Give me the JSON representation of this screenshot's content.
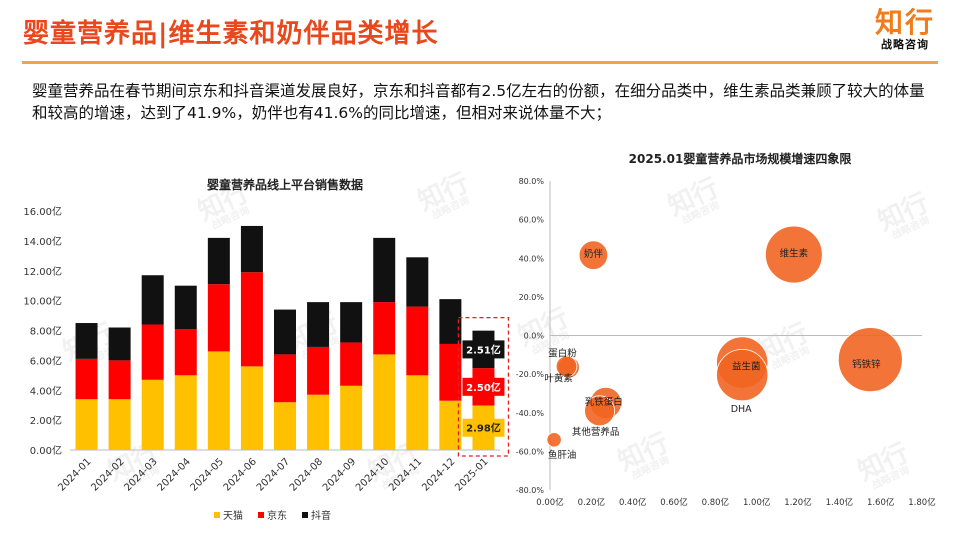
{
  "header": {
    "title": "婴童营养品|维生素和奶伴品类增长",
    "intro": "婴童营养品在春节期间京东和抖音渠道发展良好，京东和抖音都有2.5亿左右的份额，在细分品类中，维生素品类兼顾了较大的体量和较高的增速，达到了41.9%，奶伴也有41.6%的同比增速，但相对来说体量不大；"
  },
  "logo": {
    "main": "知行",
    "sub": "战略咨询"
  },
  "watermark": {
    "main": "知行",
    "sub": "战略咨询"
  },
  "colors": {
    "accent": "#e8481c",
    "tmall": "#ffc000",
    "jd": "#ff0000",
    "douyin": "#111111",
    "bubble": "#f26522",
    "highlight": "#e02020"
  },
  "chart_data": [
    {
      "type": "bar",
      "stacked": true,
      "title": "婴童营养品线上平台销售数据",
      "categories": [
        "2024-01",
        "2024-02",
        "2024-03",
        "2024-04",
        "2024-05",
        "2024-06",
        "2024-07",
        "2024-08",
        "2024-09",
        "2024-10",
        "2024-11",
        "2024-12",
        "2025-01"
      ],
      "series": [
        {
          "name": "天猫",
          "values": [
            3.4,
            3.4,
            4.7,
            5.0,
            6.6,
            5.6,
            3.2,
            3.7,
            4.3,
            6.4,
            5.0,
            3.3,
            2.98
          ]
        },
        {
          "name": "京东",
          "values": [
            2.7,
            2.6,
            3.7,
            3.1,
            4.5,
            6.3,
            3.2,
            3.2,
            2.9,
            3.5,
            4.6,
            3.8,
            2.5
          ]
        },
        {
          "name": "抖音",
          "values": [
            2.4,
            2.2,
            3.3,
            2.9,
            3.1,
            3.1,
            3.0,
            3.0,
            2.7,
            4.3,
            3.3,
            3.0,
            2.51
          ]
        }
      ],
      "highlight_index": 12,
      "highlight_labels": [
        "2.98亿",
        "2.50亿",
        "2.51亿"
      ],
      "ylim": [
        0,
        16
      ],
      "yticks": [
        "0.00亿",
        "2.00亿",
        "4.00亿",
        "6.00亿",
        "8.00亿",
        "10.00亿",
        "12.00亿",
        "14.00亿",
        "16.00亿"
      ],
      "legend": [
        "天猫",
        "京东",
        "抖音"
      ]
    },
    {
      "type": "scatter",
      "bubble": true,
      "title": "2025.01婴童营养品市场规模增速四象限",
      "xlim": [
        0,
        1.8
      ],
      "ylim": [
        -80,
        80
      ],
      "xticks": [
        "0.00亿",
        "0.20亿",
        "0.40亿",
        "0.60亿",
        "0.80亿",
        "1.00亿",
        "1.20亿",
        "1.40亿",
        "1.60亿",
        "1.80亿"
      ],
      "yticks": [
        "-80.0%",
        "-60.0%",
        "-40.0%",
        "-20.0%",
        "0.0%",
        "20.0%",
        "40.0%",
        "60.0%",
        "80.0%"
      ],
      "points": [
        {
          "label": "奶伴",
          "x": 0.21,
          "y": 41.6,
          "size": 0.21
        },
        {
          "label": "维生素",
          "x": 1.18,
          "y": 41.9,
          "size": 1.18
        },
        {
          "label": "蛋白粉",
          "x": 0.08,
          "y": -16,
          "size": 0.08
        },
        {
          "label": "叶黄素",
          "x": 0.09,
          "y": -16.5,
          "size": 0.09
        },
        {
          "label": "益生菌",
          "x": 0.93,
          "y": -14,
          "size": 0.93
        },
        {
          "label": "DHA",
          "x": 0.93,
          "y": -20.5,
          "size": 0.93
        },
        {
          "label": "钙铁锌",
          "x": 1.55,
          "y": -12.5,
          "size": 1.55
        },
        {
          "label": "乳铁蛋白",
          "x": 0.27,
          "y": -35,
          "size": 0.27
        },
        {
          "label": "其他营养品",
          "x": 0.24,
          "y": -39,
          "size": 0.24
        },
        {
          "label": "鱼肝油",
          "x": 0.02,
          "y": -54,
          "size": 0.02
        }
      ]
    }
  ]
}
